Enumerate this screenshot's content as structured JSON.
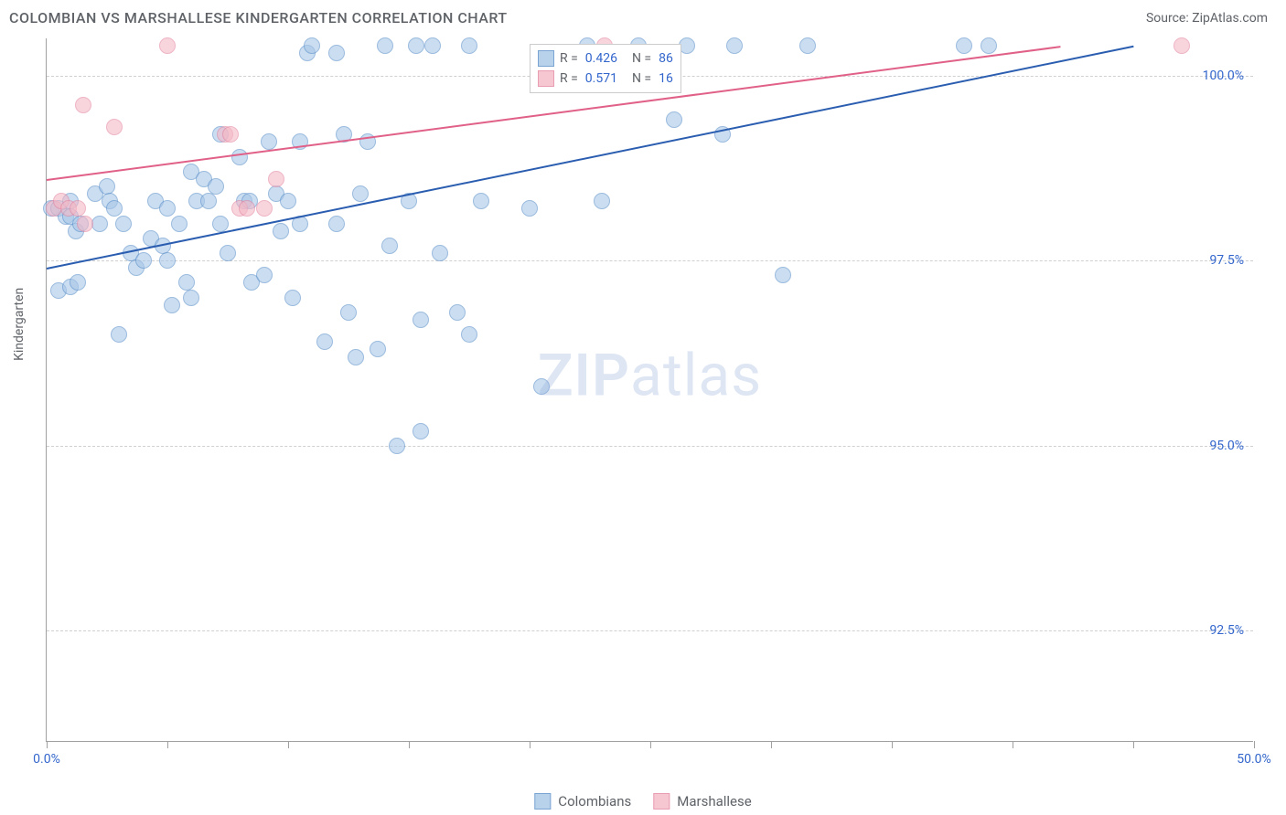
{
  "header": {
    "title": "COLOMBIAN VS MARSHALLESE KINDERGARTEN CORRELATION CHART",
    "source": "Source: ZipAtlas.com"
  },
  "chart": {
    "type": "scatter",
    "y_axis_title": "Kindergarten",
    "watermark_zip": "ZIP",
    "watermark_atlas": "atlas",
    "background_color": "#ffffff",
    "grid_color": "#d0d0d0",
    "axis_color": "#a0a0a0",
    "tick_label_color": "#3366cc",
    "title_color": "#5f6368",
    "xlim": [
      0,
      50
    ],
    "ylim": [
      91,
      100.5
    ],
    "x_ticks": [
      0,
      5,
      10,
      15,
      20,
      25,
      30,
      35,
      40,
      45,
      50
    ],
    "x_tick_labels": {
      "0": "0.0%",
      "50": "50.0%"
    },
    "y_grid": [
      92.5,
      95.0,
      97.5,
      100.0
    ],
    "y_tick_labels": {
      "92.5": "92.5%",
      "95.0": "95.0%",
      "97.5": "97.5%",
      "100.0": "100.0%"
    },
    "point_radius": 9,
    "series": {
      "colombians": {
        "label": "Colombians",
        "fill_color": "#a8c7e8",
        "fill_opacity": 0.6,
        "stroke_color": "#5a8fc9",
        "trend_color": "#2a5db0",
        "trend": {
          "x1": 0,
          "y1": 97.4,
          "x2": 45,
          "y2": 100.4
        },
        "r_value": "0.426",
        "n_value": "86",
        "points": [
          [
            0.2,
            98.2
          ],
          [
            0.5,
            98.2
          ],
          [
            0.8,
            98.1
          ],
          [
            1.0,
            98.3
          ],
          [
            1.0,
            98.1
          ],
          [
            1.2,
            97.9
          ],
          [
            1.4,
            98.0
          ],
          [
            0.5,
            97.1
          ],
          [
            1.0,
            97.15
          ],
          [
            1.3,
            97.2
          ],
          [
            2.0,
            98.4
          ],
          [
            2.2,
            98.0
          ],
          [
            2.5,
            98.5
          ],
          [
            2.6,
            98.3
          ],
          [
            2.8,
            98.2
          ],
          [
            3.0,
            96.5
          ],
          [
            3.2,
            98.0
          ],
          [
            3.5,
            97.6
          ],
          [
            3.7,
            97.4
          ],
          [
            4.0,
            97.5
          ],
          [
            4.3,
            97.8
          ],
          [
            4.5,
            98.3
          ],
          [
            4.8,
            97.7
          ],
          [
            5.0,
            98.2
          ],
          [
            5.0,
            97.5
          ],
          [
            5.2,
            96.9
          ],
          [
            5.5,
            98.0
          ],
          [
            5.8,
            97.2
          ],
          [
            6.0,
            98.7
          ],
          [
            6.0,
            97.0
          ],
          [
            6.2,
            98.3
          ],
          [
            6.5,
            98.6
          ],
          [
            6.7,
            98.3
          ],
          [
            7.0,
            98.5
          ],
          [
            7.2,
            98.0
          ],
          [
            7.2,
            99.2
          ],
          [
            7.5,
            97.6
          ],
          [
            8.0,
            98.9
          ],
          [
            8.2,
            98.3
          ],
          [
            8.4,
            98.3
          ],
          [
            8.5,
            97.2
          ],
          [
            9.0,
            97.3
          ],
          [
            9.2,
            99.1
          ],
          [
            9.5,
            98.4
          ],
          [
            9.7,
            97.9
          ],
          [
            10.0,
            98.3
          ],
          [
            10.2,
            97.0
          ],
          [
            10.5,
            98.0
          ],
          [
            10.5,
            99.1
          ],
          [
            10.8,
            100.3
          ],
          [
            11.0,
            100.4
          ],
          [
            11.5,
            96.4
          ],
          [
            12.0,
            98.0
          ],
          [
            12.0,
            100.3
          ],
          [
            12.3,
            99.2
          ],
          [
            12.5,
            96.8
          ],
          [
            12.8,
            96.2
          ],
          [
            13.0,
            98.4
          ],
          [
            13.3,
            99.1
          ],
          [
            13.7,
            96.3
          ],
          [
            14.0,
            100.4
          ],
          [
            14.2,
            97.7
          ],
          [
            14.5,
            95.0
          ],
          [
            15.0,
            98.3
          ],
          [
            15.3,
            100.4
          ],
          [
            15.5,
            96.7
          ],
          [
            15.5,
            95.2
          ],
          [
            16.0,
            100.4
          ],
          [
            16.3,
            97.6
          ],
          [
            17.0,
            96.8
          ],
          [
            17.5,
            100.4
          ],
          [
            17.5,
            96.5
          ],
          [
            18.0,
            98.3
          ],
          [
            20.0,
            98.2
          ],
          [
            20.5,
            95.8
          ],
          [
            22.4,
            100.4
          ],
          [
            23.0,
            98.3
          ],
          [
            24.5,
            100.4
          ],
          [
            26.0,
            99.4
          ],
          [
            26.5,
            100.4
          ],
          [
            28.0,
            99.2
          ],
          [
            28.5,
            100.4
          ],
          [
            30.5,
            97.3
          ],
          [
            31.5,
            100.4
          ],
          [
            38.0,
            100.4
          ],
          [
            39.0,
            100.4
          ]
        ]
      },
      "marshallese": {
        "label": "Marshallese",
        "fill_color": "#f4b8c6",
        "fill_opacity": 0.6,
        "stroke_color": "#e485a0",
        "trend_color": "#e06088",
        "trend": {
          "x1": 0,
          "y1": 98.6,
          "x2": 42,
          "y2": 100.4
        },
        "r_value": "0.571",
        "n_value": "16",
        "points": [
          [
            0.3,
            98.2
          ],
          [
            0.6,
            98.3
          ],
          [
            0.9,
            98.2
          ],
          [
            1.3,
            98.2
          ],
          [
            1.6,
            98.0
          ],
          [
            1.5,
            99.6
          ],
          [
            2.8,
            99.3
          ],
          [
            5.0,
            100.4
          ],
          [
            7.4,
            99.2
          ],
          [
            7.6,
            99.2
          ],
          [
            8.0,
            98.2
          ],
          [
            8.3,
            98.2
          ],
          [
            9.0,
            98.2
          ],
          [
            9.5,
            98.6
          ],
          [
            23.1,
            100.4
          ],
          [
            47.0,
            100.4
          ]
        ]
      }
    },
    "legend_box": {
      "r_label": "R =",
      "n_label": "N ="
    },
    "bottom_legend": {
      "items": [
        "colombians",
        "marshallese"
      ]
    }
  }
}
